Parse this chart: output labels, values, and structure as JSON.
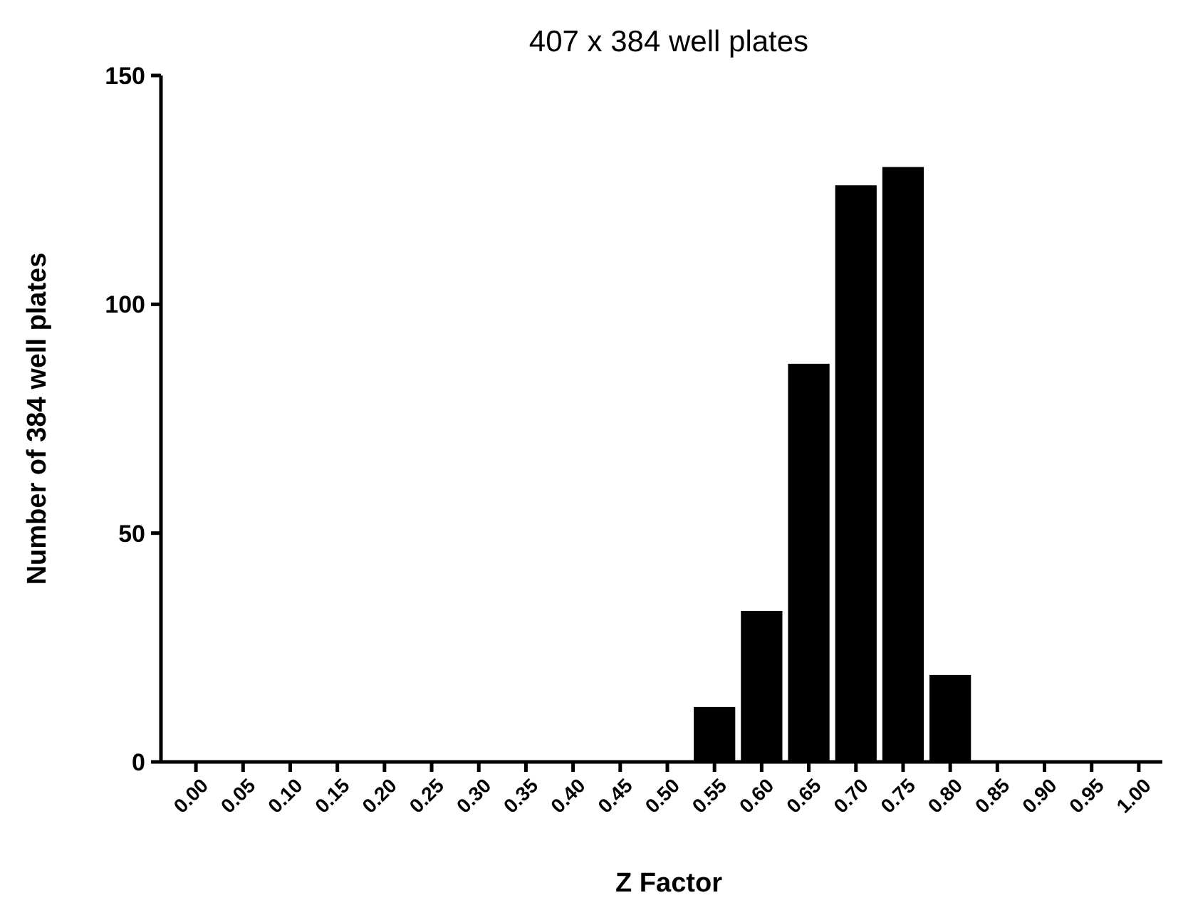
{
  "chart_data": {
    "type": "bar",
    "title": "407 x 384 well plates",
    "xlabel": "Z Factor",
    "ylabel": "Number of 384 well plates",
    "categories": [
      "0.00",
      "0.05",
      "0.10",
      "0.15",
      "0.20",
      "0.25",
      "0.30",
      "0.35",
      "0.40",
      "0.45",
      "0.50",
      "0.55",
      "0.60",
      "0.65",
      "0.70",
      "0.75",
      "0.80",
      "0.85",
      "0.90",
      "0.95",
      "1.00"
    ],
    "values": [
      0,
      0,
      0,
      0,
      0,
      0,
      0,
      0,
      0,
      0,
      0,
      12,
      33,
      87,
      126,
      130,
      19,
      0,
      0,
      0,
      0
    ],
    "color": "#000000",
    "ylim": [
      0,
      150
    ],
    "yticks": [
      0,
      50,
      100,
      150
    ],
    "grid": false
  }
}
